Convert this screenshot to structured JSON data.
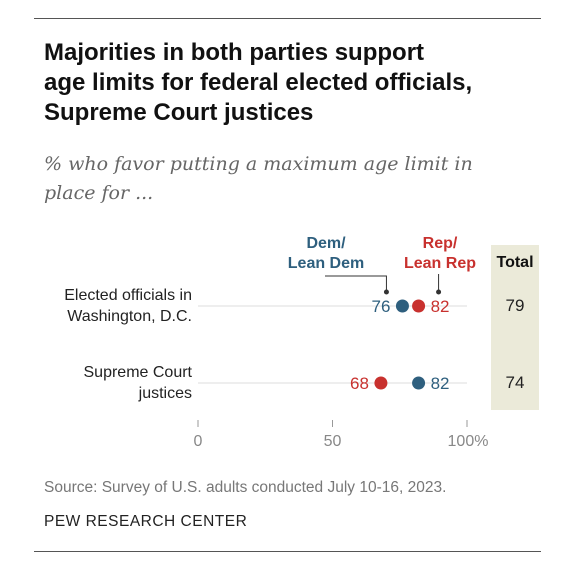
{
  "title_lines": [
    "Majorities in both parties support",
    "age limits for federal elected officials,",
    "Supreme Court justices"
  ],
  "subtitle_lines": [
    "% who favor putting a maximum age limit in",
    "place for ..."
  ],
  "legend": {
    "dem": [
      "Dem/",
      "Lean Dem"
    ],
    "rep": [
      "Rep/",
      "Lean Rep"
    ]
  },
  "total_header": "Total",
  "source": "Source: Survey of U.S. adults conducted July 10-16, 2023.",
  "org": "PEW RESEARCH CENTER",
  "colors": {
    "dem": "#2e5f7e",
    "rep": "#c8312e",
    "band": "#ebead9"
  },
  "chart_data": {
    "type": "dot",
    "categories": [
      [
        "Elected officials in",
        "Washington, D.C."
      ],
      [
        "Supreme Court",
        "justices"
      ]
    ],
    "series": [
      {
        "name": "Dem/Lean Dem",
        "values": [
          76,
          82
        ]
      },
      {
        "name": "Rep/Lean Rep",
        "values": [
          82,
          68
        ]
      }
    ],
    "totals": [
      "79",
      "74"
    ],
    "xlim": [
      0,
      100
    ],
    "xticks": [
      "0",
      "50",
      "100%"
    ],
    "grid": false
  }
}
